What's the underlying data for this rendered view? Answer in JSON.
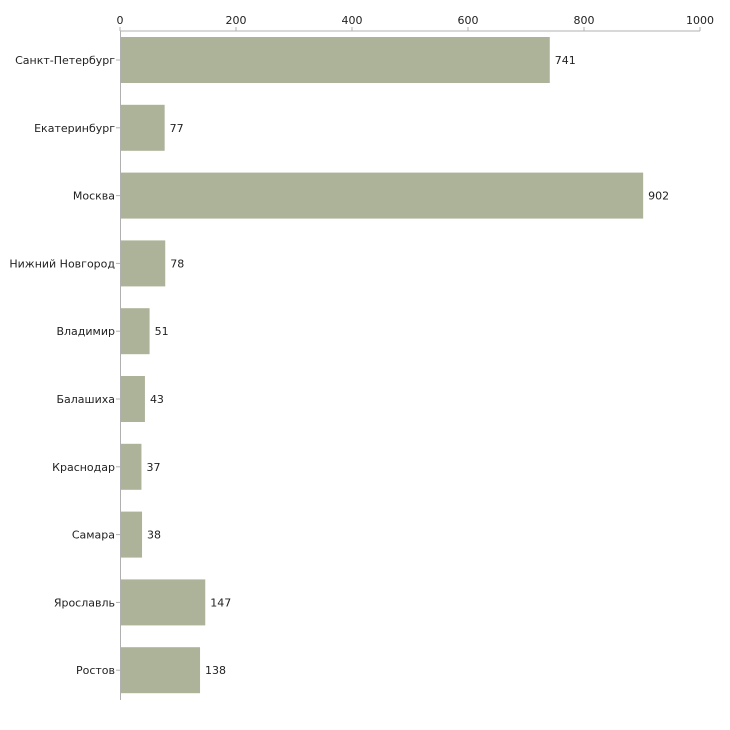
{
  "chart_data": {
    "type": "bar",
    "orientation": "horizontal",
    "categories": [
      "Санкт-Петербург",
      "Екатеринбург",
      "Москва",
      "Нижний Новгород",
      "Владимир",
      "Балашиха",
      "Краснодар",
      "Самара",
      "Ярославль",
      "Ростов"
    ],
    "values": [
      741,
      77,
      902,
      78,
      51,
      43,
      37,
      38,
      147,
      138
    ],
    "value_labels": [
      "741",
      "77",
      "902",
      "78",
      "51",
      "43",
      "37",
      "38",
      "147",
      "138"
    ],
    "xticks": [
      "0",
      "200",
      "400",
      "600",
      "800",
      "1000"
    ],
    "xlim": [
      0,
      1000
    ],
    "axis_position": "top",
    "title": "",
    "xlabel": "",
    "ylabel": "",
    "grid": false,
    "bar_color": "#adb399",
    "axis_color": "#b0b0b0"
  }
}
